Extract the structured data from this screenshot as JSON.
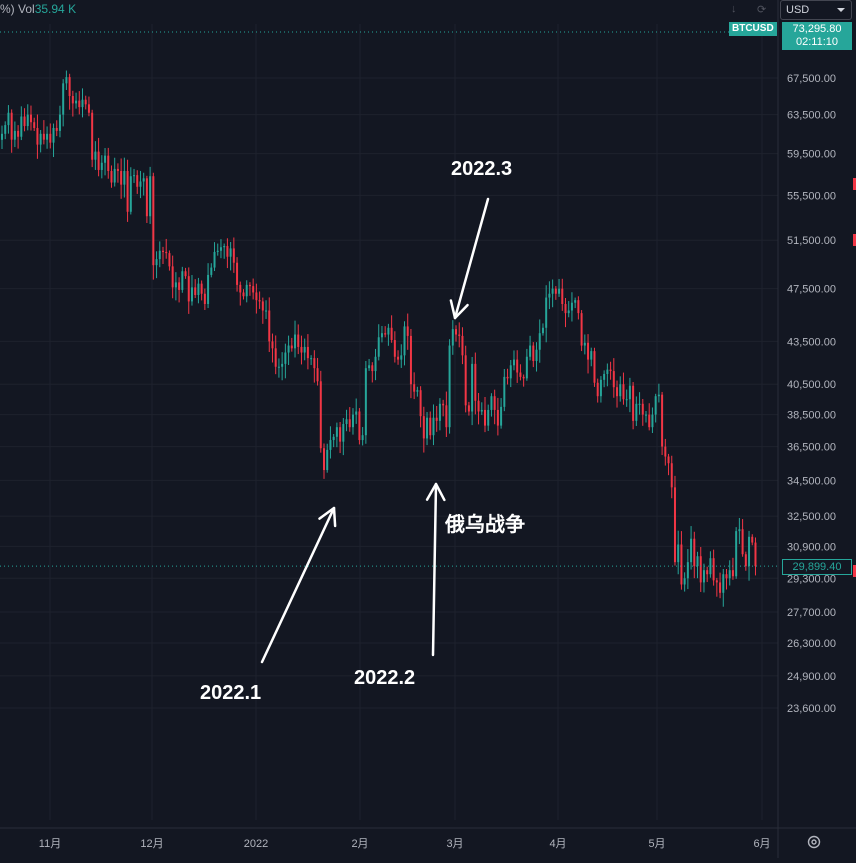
{
  "header": {
    "left_fragment": "%)",
    "volume_label": "Vol",
    "volume_value": "35.94 K"
  },
  "toolbar": {
    "currency_select": "USD",
    "down_arrow_icon": "arrow-down-icon",
    "refresh_icon": "refresh-icon",
    "settings_icon": "gear-icon"
  },
  "symbol_tag": "BTCUSD",
  "live_price": "73,295.80",
  "countdown": "02:11:10",
  "last_price_tag": "29,899.40",
  "colors": {
    "up": "#26a69a",
    "down": "#f23645",
    "background": "#131722",
    "grid": "#1e222d"
  },
  "chart_data": {
    "type": "candlestick",
    "x_tick_labels": [
      "11月",
      "12月",
      "2022",
      "2月",
      "3月",
      "4月",
      "5月",
      "6月"
    ],
    "y_tick_labels": [
      "67,500.00",
      "63,500.00",
      "59,500.00",
      "55,500.00",
      "51,500.00",
      "47,500.00",
      "43,500.00",
      "40,500.00",
      "38,500.00",
      "36,500.00",
      "34,500.00",
      "32,500.00",
      "30,900.00",
      "29,300.00",
      "27,700.00",
      "26,300.00",
      "24,900.00",
      "23,600.00"
    ],
    "y_scale": "log",
    "ylim": [
      23000,
      70000
    ],
    "grid": true,
    "annotations": [
      "2022.1",
      "2022.2",
      "2022.3",
      "俄乌战争"
    ],
    "daily_closes": [
      61500,
      62400,
      63700,
      60900,
      61800,
      61200,
      63300,
      62300,
      63500,
      62700,
      62100,
      60400,
      61500,
      60900,
      61500,
      60600,
      62100,
      61800,
      63500,
      66900,
      67600,
      65500,
      64700,
      65000,
      64300,
      65100,
      64600,
      63700,
      58900,
      59700,
      57900,
      58600,
      59300,
      57800,
      56700,
      58000,
      57800,
      56500,
      57800,
      54000,
      57300,
      57400,
      56300,
      56800,
      57100,
      53600,
      57300,
      49400,
      49900,
      50600,
      50500,
      50400,
      49300,
      47600,
      48000,
      47400,
      48900,
      48500,
      46500,
      47600,
      47000,
      47900,
      47100,
      46300,
      48600,
      49200,
      50500,
      50600,
      50900,
      51000,
      50100,
      50800,
      49600,
      47800,
      47200,
      46900,
      47800,
      47700,
      47200,
      46600,
      46500,
      45800,
      45800,
      43500,
      43000,
      41700,
      41700,
      41900,
      42700,
      43200,
      43000,
      44000,
      43100,
      42700,
      43100,
      42300,
      42300,
      41600,
      40700,
      36400,
      35100,
      36300,
      36900,
      37100,
      37700,
      36800,
      37900,
      38200,
      37700,
      38500,
      38700,
      36900,
      37200,
      41600,
      41800,
      41400,
      42400,
      43800,
      44100,
      44000,
      44500,
      43600,
      42400,
      42200,
      42500,
      44600,
      43900,
      40500,
      40000,
      40100,
      38400,
      37000,
      38300,
      37200,
      38300,
      38100,
      39200,
      39100,
      37700,
      43200,
      44400,
      44000,
      43900,
      42500,
      39100,
      38700,
      41900,
      39400,
      38700,
      38800,
      37800,
      38800,
      39700,
      38800,
      37800,
      39000,
      41000,
      40900,
      41800,
      42200,
      41300,
      41000,
      40900,
      42400,
      43200,
      42100,
      42900,
      44100,
      44500,
      46800,
      47100,
      47500,
      47100,
      47500,
      46300,
      45600,
      45800,
      46400,
      46600,
      45600,
      43200,
      43400,
      42200,
      42800,
      40600,
      39700,
      40800,
      41200,
      41500,
      41400,
      40300,
      39700,
      40500,
      39500,
      39500,
      40400,
      38100,
      39200,
      39200,
      38500,
      38500,
      37700,
      38500,
      39700,
      39800,
      36500,
      35900,
      35500,
      34100,
      30100,
      31000,
      29000,
      29300,
      30100,
      31300,
      29900,
      30400,
      29100,
      29700,
      29500,
      30300,
      29200,
      29100,
      28600,
      29500,
      29300,
      29700,
      29400,
      31700,
      31800,
      30500,
      29900,
      31400,
      31100,
      29900
    ]
  }
}
